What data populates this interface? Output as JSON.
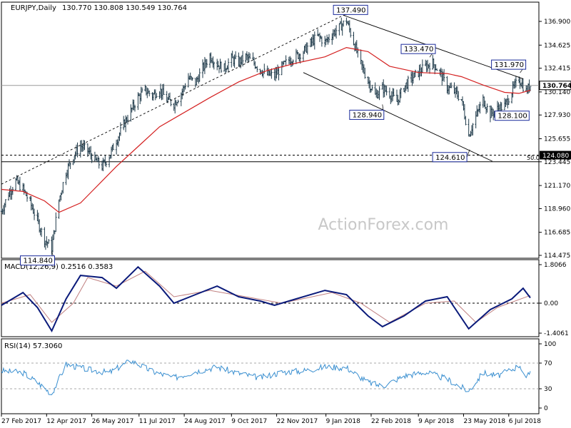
{
  "symbol": "EURJPY,Daily",
  "ohlc_header": "130.770 130.808 130.549 130.764",
  "watermark": "ActionForex.com",
  "colors": {
    "candle": "#1f3a4a",
    "sma": "#d42020",
    "macd": "#0a1a7a",
    "signal": "#c08080",
    "rsi": "#3a8fd0",
    "guide": "#000000",
    "label_border": "#1a2a9a"
  },
  "chart_data": [
    {
      "type": "line",
      "title": "EURJPY,Daily 130.770 130.808 130.549 130.764",
      "xlabel": "",
      "ylabel": "",
      "ylim": [
        114.475,
        138.2
      ],
      "x_tick_labels": [
        "27 Feb 2017",
        "12 Apr 2017",
        "26 May 2017",
        "11 Jul 2017",
        "24 Aug 2017",
        "9 Oct 2017",
        "22 Nov 2017",
        "9 Jan 2018",
        "22 Feb 2018",
        "9 Apr 2018",
        "23 May 2018",
        "6 Jul 2018"
      ],
      "y_tick_labels": [
        "136.900",
        "134.625",
        "132.415",
        "130.140",
        "127.930",
        "125.655",
        "123.445",
        "121.170",
        "118.960",
        "116.685",
        "114.475"
      ],
      "close_series": [
        {
          "date": "2017-02-27",
          "value": 118.7
        },
        {
          "date": "2017-03-06",
          "value": 120.4
        },
        {
          "date": "2017-03-13",
          "value": 121.6
        },
        {
          "date": "2017-03-20",
          "value": 120.8
        },
        {
          "date": "2017-03-27",
          "value": 119.5
        },
        {
          "date": "2017-04-03",
          "value": 117.8
        },
        {
          "date": "2017-04-10",
          "value": 116.0
        },
        {
          "date": "2017-04-17",
          "value": 115.2
        },
        {
          "date": "2017-04-24",
          "value": 119.8
        },
        {
          "date": "2017-05-01",
          "value": 122.5
        },
        {
          "date": "2017-05-08",
          "value": 124.0
        },
        {
          "date": "2017-05-15",
          "value": 125.0
        },
        {
          "date": "2017-05-22",
          "value": 124.5
        },
        {
          "date": "2017-05-29",
          "value": 123.6
        },
        {
          "date": "2017-06-05",
          "value": 123.0
        },
        {
          "date": "2017-06-12",
          "value": 124.0
        },
        {
          "date": "2017-06-19",
          "value": 125.5
        },
        {
          "date": "2017-06-26",
          "value": 127.0
        },
        {
          "date": "2017-07-03",
          "value": 128.3
        },
        {
          "date": "2017-07-10",
          "value": 129.6
        },
        {
          "date": "2017-07-17",
          "value": 130.3
        },
        {
          "date": "2017-07-24",
          "value": 129.8
        },
        {
          "date": "2017-07-31",
          "value": 130.4
        },
        {
          "date": "2017-08-07",
          "value": 129.4
        },
        {
          "date": "2017-08-14",
          "value": 129.0
        },
        {
          "date": "2017-08-21",
          "value": 130.0
        },
        {
          "date": "2017-08-28",
          "value": 131.5
        },
        {
          "date": "2017-09-04",
          "value": 131.0
        },
        {
          "date": "2017-09-11",
          "value": 132.4
        },
        {
          "date": "2017-09-18",
          "value": 133.6
        },
        {
          "date": "2017-09-25",
          "value": 132.8
        },
        {
          "date": "2017-10-02",
          "value": 132.4
        },
        {
          "date": "2017-10-09",
          "value": 133.3
        },
        {
          "date": "2017-10-16",
          "value": 133.0
        },
        {
          "date": "2017-10-23",
          "value": 133.5
        },
        {
          "date": "2017-10-30",
          "value": 133.0
        },
        {
          "date": "2017-11-06",
          "value": 132.3
        },
        {
          "date": "2017-11-13",
          "value": 131.8
        },
        {
          "date": "2017-11-20",
          "value": 131.7
        },
        {
          "date": "2017-11-27",
          "value": 132.5
        },
        {
          "date": "2017-12-04",
          "value": 133.2
        },
        {
          "date": "2017-12-11",
          "value": 133.6
        },
        {
          "date": "2017-12-18",
          "value": 134.0
        },
        {
          "date": "2017-12-25",
          "value": 134.8
        },
        {
          "date": "2018-01-01",
          "value": 135.5
        },
        {
          "date": "2018-01-08",
          "value": 134.9
        },
        {
          "date": "2018-01-15",
          "value": 135.7
        },
        {
          "date": "2018-01-22",
          "value": 136.3
        },
        {
          "date": "2018-01-29",
          "value": 137.0
        },
        {
          "date": "2018-02-05",
          "value": 134.9
        },
        {
          "date": "2018-02-12",
          "value": 132.8
        },
        {
          "date": "2018-02-19",
          "value": 131.2
        },
        {
          "date": "2018-02-26",
          "value": 129.8
        },
        {
          "date": "2018-03-05",
          "value": 130.5
        },
        {
          "date": "2018-03-12",
          "value": 130.0
        },
        {
          "date": "2018-03-19",
          "value": 129.2
        },
        {
          "date": "2018-03-26",
          "value": 130.6
        },
        {
          "date": "2018-04-02",
          "value": 131.4
        },
        {
          "date": "2018-04-09",
          "value": 132.0
        },
        {
          "date": "2018-04-16",
          "value": 132.6
        },
        {
          "date": "2018-04-23",
          "value": 132.9
        },
        {
          "date": "2018-04-30",
          "value": 132.0
        },
        {
          "date": "2018-05-07",
          "value": 130.6
        },
        {
          "date": "2018-05-14",
          "value": 130.2
        },
        {
          "date": "2018-05-21",
          "value": 129.4
        },
        {
          "date": "2018-05-28",
          "value": 126.0
        },
        {
          "date": "2018-06-04",
          "value": 127.8
        },
        {
          "date": "2018-06-11",
          "value": 129.4
        },
        {
          "date": "2018-06-18",
          "value": 128.0
        },
        {
          "date": "2018-06-25",
          "value": 128.5
        },
        {
          "date": "2018-07-02",
          "value": 128.8
        },
        {
          "date": "2018-07-09",
          "value": 130.2
        },
        {
          "date": "2018-07-16",
          "value": 131.4
        },
        {
          "date": "2018-07-23",
          "value": 130.2
        },
        {
          "date": "2018-07-27",
          "value": 130.764
        }
      ],
      "sma_series": [
        {
          "date": "2017-02-27",
          "value": 120.8
        },
        {
          "date": "2017-03-20",
          "value": 120.6
        },
        {
          "date": "2017-04-10",
          "value": 119.7
        },
        {
          "date": "2017-04-24",
          "value": 118.6
        },
        {
          "date": "2017-05-15",
          "value": 119.5
        },
        {
          "date": "2017-06-05",
          "value": 121.6
        },
        {
          "date": "2017-06-19",
          "value": 123.0
        },
        {
          "date": "2017-07-10",
          "value": 124.9
        },
        {
          "date": "2017-07-31",
          "value": 126.8
        },
        {
          "date": "2017-08-21",
          "value": 128.0
        },
        {
          "date": "2017-09-18",
          "value": 129.6
        },
        {
          "date": "2017-10-16",
          "value": 131.1
        },
        {
          "date": "2017-11-13",
          "value": 132.2
        },
        {
          "date": "2017-12-11",
          "value": 132.9
        },
        {
          "date": "2018-01-08",
          "value": 133.5
        },
        {
          "date": "2018-01-29",
          "value": 134.4
        },
        {
          "date": "2018-02-19",
          "value": 134.0
        },
        {
          "date": "2018-03-12",
          "value": 132.6
        },
        {
          "date": "2018-04-09",
          "value": 132.0
        },
        {
          "date": "2018-05-07",
          "value": 131.9
        },
        {
          "date": "2018-05-21",
          "value": 131.6
        },
        {
          "date": "2018-06-11",
          "value": 130.8
        },
        {
          "date": "2018-07-02",
          "value": 130.1
        },
        {
          "date": "2018-07-16",
          "value": 130.0
        },
        {
          "date": "2018-07-27",
          "value": 130.3
        }
      ],
      "horizontal_lines": [
        {
          "label": "124.080",
          "value": 124.08,
          "style": "dashed"
        },
        {
          "label": "50.0",
          "value": 123.445,
          "style": "solid"
        },
        {
          "label": "130.764",
          "value": 130.764,
          "style": "solid-gray"
        }
      ],
      "trendlines": [
        {
          "from": {
            "date": "2017-02-27",
            "value": 121.3
          },
          "to": {
            "date": "2018-01-26",
            "value": 137.49
          },
          "style": "dashed"
        },
        {
          "from": {
            "date": "2018-01-26",
            "value": 137.49
          },
          "to": {
            "date": "2018-07-20",
            "value": 131.4
          },
          "style": "solid"
        },
        {
          "from": {
            "date": "2017-12-18",
            "value": 132.0
          },
          "to": {
            "date": "2018-06-20",
            "value": 123.5
          },
          "style": "solid"
        }
      ],
      "annotations": [
        {
          "label": "137.490",
          "date": "2018-01-26",
          "value": 137.49
        },
        {
          "label": "133.470",
          "date": "2018-04-20",
          "value": 133.47
        },
        {
          "label": "131.970",
          "date": "2018-07-17",
          "value": 131.97
        },
        {
          "label": "128.940",
          "date": "2018-03-05",
          "value": 128.94
        },
        {
          "label": "124.610",
          "date": "2018-05-29",
          "value": 124.61
        },
        {
          "label": "128.100",
          "date": "2018-07-05",
          "value": 128.1
        },
        {
          "label": "114.840",
          "date": "2017-04-17",
          "value": 114.84
        }
      ],
      "last_price_label": "130.764",
      "last_price": 130.764
    },
    {
      "type": "line",
      "title": "MACD(12,26,9) 0.2516 0.3583",
      "ylim": [
        -1.4061,
        1.8066
      ],
      "y_tick_labels": [
        "1.8066",
        "0.00",
        "-1.4061"
      ],
      "series": [
        {
          "name": "MACD",
          "values": [
            {
              "date": "2017-02-27",
              "value": -0.1
            },
            {
              "date": "2017-03-20",
              "value": 0.5
            },
            {
              "date": "2017-04-03",
              "value": -0.2
            },
            {
              "date": "2017-04-17",
              "value": -1.3
            },
            {
              "date": "2017-05-01",
              "value": 0.2
            },
            {
              "date": "2017-05-15",
              "value": 1.3
            },
            {
              "date": "2017-06-05",
              "value": 1.2
            },
            {
              "date": "2017-06-19",
              "value": 0.7
            },
            {
              "date": "2017-07-10",
              "value": 1.7
            },
            {
              "date": "2017-07-31",
              "value": 0.8
            },
            {
              "date": "2017-08-14",
              "value": 0.0
            },
            {
              "date": "2017-09-04",
              "value": 0.4
            },
            {
              "date": "2017-09-25",
              "value": 0.8
            },
            {
              "date": "2017-10-16",
              "value": 0.3
            },
            {
              "date": "2017-11-06",
              "value": 0.1
            },
            {
              "date": "2017-11-20",
              "value": -0.1
            },
            {
              "date": "2017-12-11",
              "value": 0.2
            },
            {
              "date": "2018-01-08",
              "value": 0.6
            },
            {
              "date": "2018-01-29",
              "value": 0.4
            },
            {
              "date": "2018-02-19",
              "value": -0.6
            },
            {
              "date": "2018-03-05",
              "value": -1.1
            },
            {
              "date": "2018-03-26",
              "value": -0.6
            },
            {
              "date": "2018-04-16",
              "value": 0.1
            },
            {
              "date": "2018-05-07",
              "value": 0.3
            },
            {
              "date": "2018-05-28",
              "value": -1.2
            },
            {
              "date": "2018-06-18",
              "value": -0.3
            },
            {
              "date": "2018-07-09",
              "value": 0.2
            },
            {
              "date": "2018-07-20",
              "value": 0.7
            },
            {
              "date": "2018-07-27",
              "value": 0.25
            }
          ]
        },
        {
          "name": "Signal",
          "values": [
            {
              "date": "2017-02-27",
              "value": 0.0
            },
            {
              "date": "2017-03-27",
              "value": 0.4
            },
            {
              "date": "2017-04-17",
              "value": -0.9
            },
            {
              "date": "2017-05-08",
              "value": 0.0
            },
            {
              "date": "2017-05-22",
              "value": 1.2
            },
            {
              "date": "2017-06-19",
              "value": 0.8
            },
            {
              "date": "2017-07-17",
              "value": 1.5
            },
            {
              "date": "2017-08-14",
              "value": 0.3
            },
            {
              "date": "2017-09-18",
              "value": 0.6
            },
            {
              "date": "2017-10-23",
              "value": 0.3
            },
            {
              "date": "2017-11-27",
              "value": 0.0
            },
            {
              "date": "2018-01-15",
              "value": 0.5
            },
            {
              "date": "2018-02-12",
              "value": 0.0
            },
            {
              "date": "2018-03-12",
              "value": -0.9
            },
            {
              "date": "2018-04-16",
              "value": 0.0
            },
            {
              "date": "2018-05-14",
              "value": 0.1
            },
            {
              "date": "2018-06-04",
              "value": -0.9
            },
            {
              "date": "2018-06-25",
              "value": -0.2
            },
            {
              "date": "2018-07-27",
              "value": 0.36
            }
          ]
        }
      ]
    },
    {
      "type": "line",
      "title": "RSI(14) 57.3060",
      "ylim": [
        0,
        100
      ],
      "y_tick_labels": [
        "100",
        "70",
        "30",
        "0"
      ],
      "levels": [
        70,
        30
      ],
      "series": [
        {
          "name": "RSI",
          "values": [
            {
              "date": "2017-02-27",
              "value": 58
            },
            {
              "date": "2017-03-20",
              "value": 55
            },
            {
              "date": "2017-04-03",
              "value": 40
            },
            {
              "date": "2017-04-17",
              "value": 22
            },
            {
              "date": "2017-05-01",
              "value": 68
            },
            {
              "date": "2017-05-22",
              "value": 60
            },
            {
              "date": "2017-06-12",
              "value": 55
            },
            {
              "date": "2017-07-03",
              "value": 74
            },
            {
              "date": "2017-07-24",
              "value": 57
            },
            {
              "date": "2017-08-14",
              "value": 47
            },
            {
              "date": "2017-09-04",
              "value": 57
            },
            {
              "date": "2017-09-25",
              "value": 64
            },
            {
              "date": "2017-10-16",
              "value": 54
            },
            {
              "date": "2017-11-06",
              "value": 47
            },
            {
              "date": "2017-11-27",
              "value": 56
            },
            {
              "date": "2017-12-18",
              "value": 58
            },
            {
              "date": "2018-01-08",
              "value": 64
            },
            {
              "date": "2018-01-29",
              "value": 63
            },
            {
              "date": "2018-02-19",
              "value": 40
            },
            {
              "date": "2018-03-05",
              "value": 34
            },
            {
              "date": "2018-03-26",
              "value": 50
            },
            {
              "date": "2018-04-16",
              "value": 56
            },
            {
              "date": "2018-05-07",
              "value": 45
            },
            {
              "date": "2018-05-28",
              "value": 26
            },
            {
              "date": "2018-06-11",
              "value": 55
            },
            {
              "date": "2018-06-25",
              "value": 50
            },
            {
              "date": "2018-07-09",
              "value": 60
            },
            {
              "date": "2018-07-17",
              "value": 67
            },
            {
              "date": "2018-07-23",
              "value": 44
            },
            {
              "date": "2018-07-27",
              "value": 57.306
            }
          ]
        }
      ]
    }
  ]
}
